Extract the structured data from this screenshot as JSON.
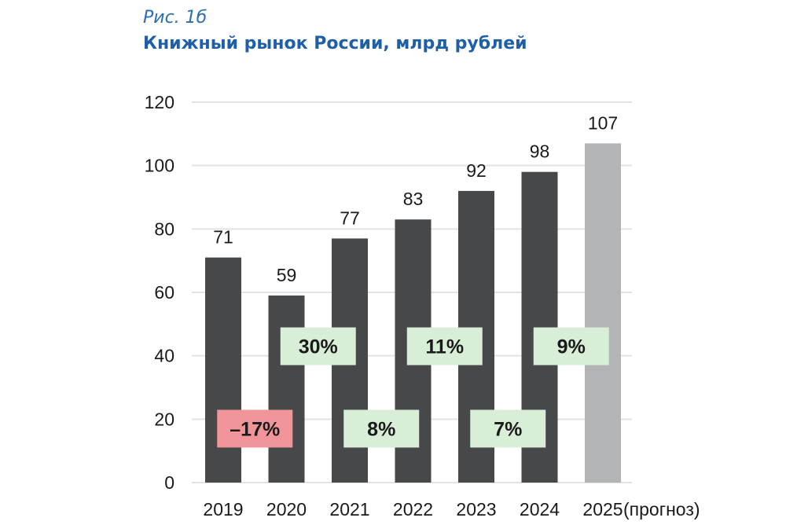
{
  "figure": {
    "label": "Рис. 1б",
    "title": "Книжный рынок России, млрд рублей"
  },
  "colors": {
    "bar": "#47484a",
    "bar_forecast": "#b3b4b6",
    "grid": "#e3e3e3",
    "positive_box": "#d8eed6",
    "negative_box": "#f2959a",
    "text": "#1a1a1a"
  },
  "chart_data": {
    "type": "bar",
    "title": "Книжный рынок России, млрд рублей",
    "xlabel": "",
    "ylabel": "",
    "ylim": [
      0,
      120
    ],
    "yticks": [
      0,
      20,
      40,
      60,
      80,
      100,
      120
    ],
    "grid": true,
    "categories": [
      "2019",
      "2020",
      "2021",
      "2022",
      "2023",
      "2024",
      "2025"
    ],
    "category_suffix": "(прогноз)",
    "values": [
      71,
      59,
      77,
      83,
      92,
      98,
      107
    ],
    "forecast": [
      false,
      false,
      false,
      false,
      false,
      false,
      true
    ],
    "growth_annotations": [
      {
        "between": [
          "2019",
          "2020"
        ],
        "text": "–17%",
        "level": 17,
        "sign": "negative"
      },
      {
        "between": [
          "2020",
          "2021"
        ],
        "text": "30%",
        "level": 43,
        "sign": "positive"
      },
      {
        "between": [
          "2021",
          "2022"
        ],
        "text": "8%",
        "level": 17,
        "sign": "positive"
      },
      {
        "between": [
          "2022",
          "2023"
        ],
        "text": "11%",
        "level": 43,
        "sign": "positive"
      },
      {
        "between": [
          "2023",
          "2024"
        ],
        "text": "7%",
        "level": 17,
        "sign": "positive"
      },
      {
        "between": [
          "2024",
          "2025"
        ],
        "text": "9%",
        "level": 43,
        "sign": "positive"
      }
    ]
  }
}
